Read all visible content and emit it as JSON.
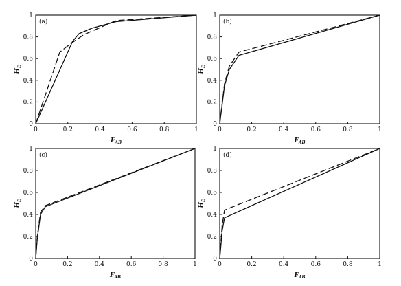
{
  "chart_data": [
    {
      "type": "line",
      "panel_label": "(a)",
      "xlabel": "F",
      "xlabel_sub": "AB",
      "ylabel": "H",
      "ylabel_sub": "E",
      "xlim": [
        0,
        1
      ],
      "ylim": [
        0,
        1
      ],
      "xticks": [
        "0",
        "0.2",
        "0.4",
        "0.6",
        "0.8",
        "1"
      ],
      "yticks": [
        "0",
        "0.2",
        "0.4",
        "0.6",
        "0.8",
        "1"
      ],
      "grid": false,
      "series": [
        {
          "style": "solid",
          "x": [
            0,
            0.23,
            0.27,
            0.35,
            0.5,
            1.0
          ],
          "y": [
            0,
            0.76,
            0.83,
            0.88,
            0.94,
            1.0
          ]
        },
        {
          "style": "dashed",
          "x": [
            0,
            0.05,
            0.15,
            0.22,
            0.3,
            0.5,
            1.0
          ],
          "y": [
            0,
            0.22,
            0.66,
            0.74,
            0.82,
            0.95,
            1.0
          ]
        }
      ]
    },
    {
      "type": "line",
      "panel_label": "(b)",
      "xlabel": "F",
      "xlabel_sub": "AB",
      "ylabel": "H",
      "ylabel_sub": "E",
      "xlim": [
        0,
        1
      ],
      "ylim": [
        0,
        1
      ],
      "xticks": [
        "0",
        "0.2",
        "0.4",
        "0.6",
        "0.8",
        "1"
      ],
      "yticks": [
        "0",
        "0.2",
        "0.4",
        "0.6",
        "0.8",
        "1"
      ],
      "grid": false,
      "series": [
        {
          "style": "solid",
          "x": [
            0,
            0.03,
            0.06,
            0.12,
            1.0
          ],
          "y": [
            0,
            0.35,
            0.5,
            0.63,
            1.0
          ]
        },
        {
          "style": "dashed",
          "x": [
            0,
            0.03,
            0.06,
            0.12,
            1.0
          ],
          "y": [
            0,
            0.37,
            0.53,
            0.66,
            1.0
          ]
        }
      ]
    },
    {
      "type": "line",
      "panel_label": "(c)",
      "xlabel": "F",
      "xlabel_sub": "AB",
      "ylabel": "H",
      "ylabel_sub": "E",
      "xlim": [
        0,
        1
      ],
      "ylim": [
        0,
        1
      ],
      "xticks": [
        "0",
        "0.2",
        "0.4",
        "0.6",
        "0.8",
        "1"
      ],
      "yticks": [
        "0",
        "0.2",
        "0.4",
        "0.6",
        "0.8",
        "1"
      ],
      "grid": false,
      "series": [
        {
          "style": "solid",
          "x": [
            0,
            0.01,
            0.03,
            0.06,
            1.0
          ],
          "y": [
            0,
            0.18,
            0.4,
            0.47,
            1.0
          ]
        },
        {
          "style": "dashed",
          "x": [
            0,
            0.01,
            0.03,
            0.06,
            1.0
          ],
          "y": [
            0,
            0.2,
            0.42,
            0.48,
            1.0
          ]
        }
      ]
    },
    {
      "type": "line",
      "panel_label": "(d)",
      "xlabel": "F",
      "xlabel_sub": "AB",
      "ylabel": "H",
      "ylabel_sub": "E",
      "xlim": [
        0,
        1
      ],
      "ylim": [
        0,
        1
      ],
      "xticks": [
        "0",
        "0.2",
        "0.4",
        "0.6",
        "0.8",
        "1"
      ],
      "yticks": [
        "0",
        "0.2",
        "0.4",
        "0.6",
        "0.8",
        "1"
      ],
      "grid": false,
      "series": [
        {
          "style": "solid",
          "x": [
            0,
            0.005,
            0.015,
            0.03,
            1.0
          ],
          "y": [
            0,
            0.08,
            0.25,
            0.37,
            1.0
          ]
        },
        {
          "style": "dashed",
          "x": [
            0,
            0.005,
            0.015,
            0.03,
            1.0
          ],
          "y": [
            0,
            0.1,
            0.3,
            0.44,
            1.0
          ]
        }
      ]
    }
  ]
}
